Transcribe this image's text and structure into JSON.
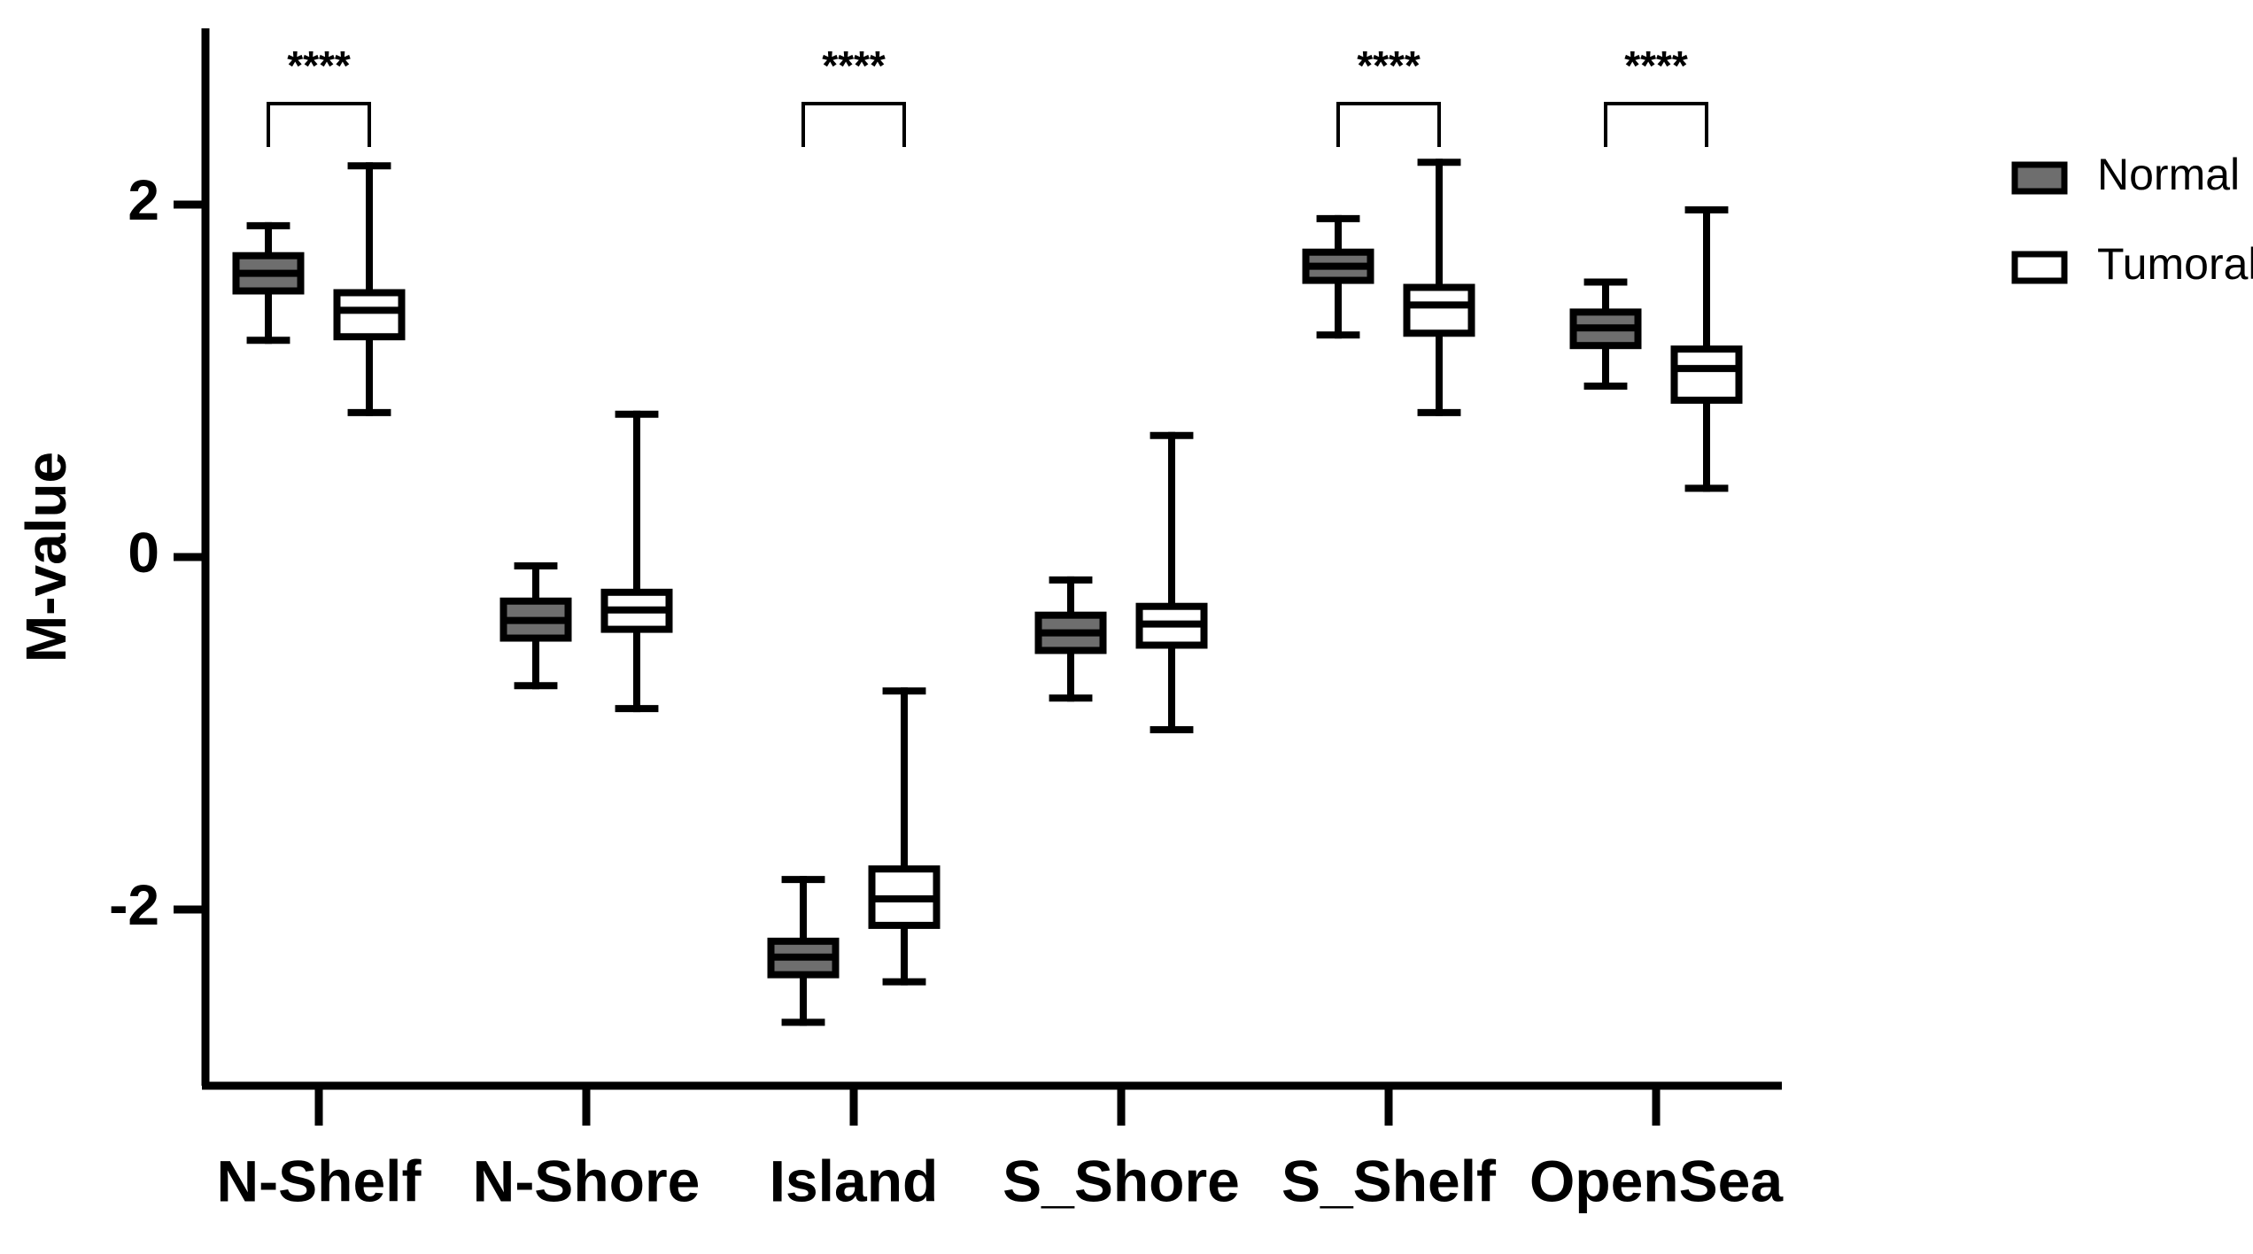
{
  "chart_data": {
    "type": "box",
    "y_label": "M-value",
    "categories": [
      "N-Shelf",
      "N-Shore",
      "Island",
      "S_Shore",
      "S_Shelf",
      "OpenSea"
    ],
    "series": [
      {
        "name": "Normal",
        "color": "#6e6e6e",
        "min": [
          1.23,
          -0.73,
          -2.64,
          -0.8,
          1.26,
          0.97
        ],
        "q1": [
          1.51,
          -0.46,
          -2.37,
          -0.53,
          1.57,
          1.2
        ],
        "median": [
          1.61,
          -0.36,
          -2.27,
          -0.43,
          1.65,
          1.3
        ],
        "q3": [
          1.71,
          -0.25,
          -2.18,
          -0.33,
          1.73,
          1.39
        ],
        "max": [
          1.88,
          -0.05,
          -1.83,
          -0.13,
          1.92,
          1.56
        ]
      },
      {
        "name": "Tumoral",
        "color": "#ffffff",
        "min": [
          0.82,
          -0.86,
          -2.41,
          -0.98,
          0.82,
          0.39
        ],
        "q1": [
          1.25,
          -0.41,
          -2.09,
          -0.5,
          1.27,
          0.89
        ],
        "median": [
          1.4,
          -0.3,
          -1.94,
          -0.38,
          1.43,
          1.07
        ],
        "q3": [
          1.5,
          -0.2,
          -1.77,
          -0.28,
          1.53,
          1.18
        ],
        "max": [
          2.22,
          0.81,
          -0.76,
          0.69,
          2.24,
          1.97
        ]
      }
    ],
    "significance": [
      "****",
      null,
      "****",
      null,
      "****",
      "****"
    ],
    "ylim": [
      -3,
      3
    ],
    "yticks": [
      -2,
      0,
      2
    ],
    "grid": false,
    "legend": "right"
  }
}
